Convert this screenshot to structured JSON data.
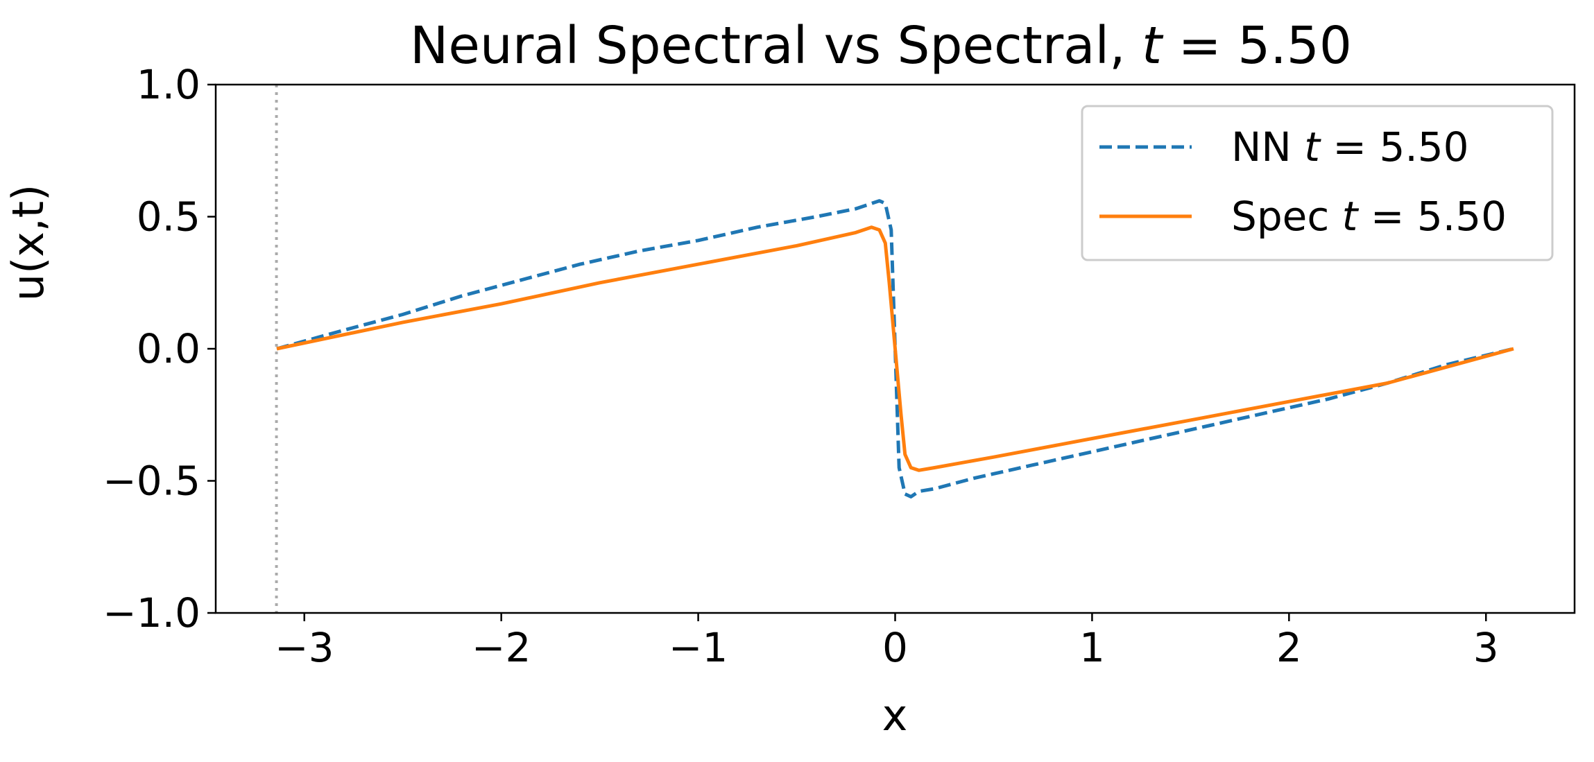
{
  "chart_data": {
    "type": "line",
    "title": "Neural Spectral vs Spectral, t = 5.50",
    "title_parts": {
      "prefix": "Neural Spectral vs Spectral, ",
      "var": "t",
      "eq": " = ",
      "val": "5.50"
    },
    "xlabel": "x",
    "ylabel": "u(x,t)",
    "xlim": [
      -3.45,
      3.45
    ],
    "ylim": [
      -1.0,
      1.0
    ],
    "xticks": [
      -3,
      -2,
      -1,
      0,
      1,
      2,
      3
    ],
    "xtick_labels": [
      "−3",
      "−2",
      "−1",
      "0",
      "1",
      "2",
      "3"
    ],
    "yticks": [
      -1.0,
      -0.5,
      0.0,
      0.5,
      1.0
    ],
    "ytick_labels": [
      "−1.0",
      "−0.5",
      "0.0",
      "0.5",
      "1.0"
    ],
    "grid": false,
    "legend_position": "top-right",
    "reference_line": {
      "x": -3.14159,
      "style": "dotted",
      "color": "#aaaaaa"
    },
    "series": [
      {
        "name": "NN t = 5.50",
        "name_parts": {
          "prefix": "NN ",
          "var": "t",
          "eq": " = ",
          "val": "5.50"
        },
        "color": "#1f77b4",
        "style": "dashed",
        "x": [
          -3.14,
          -2.8,
          -2.5,
          -2.2,
          -1.9,
          -1.6,
          -1.3,
          -1.0,
          -0.7,
          -0.4,
          -0.2,
          -0.08,
          -0.05,
          -0.02,
          0.0,
          0.02,
          0.05,
          0.08,
          0.12,
          0.2,
          0.4,
          0.7,
          1.0,
          1.3,
          1.6,
          1.9,
          2.2,
          2.5,
          2.8,
          3.14
        ],
        "y": [
          0.0,
          0.07,
          0.13,
          0.2,
          0.26,
          0.32,
          0.37,
          0.41,
          0.46,
          0.5,
          0.53,
          0.56,
          0.55,
          0.45,
          0.0,
          -0.45,
          -0.55,
          -0.56,
          -0.54,
          -0.53,
          -0.49,
          -0.44,
          -0.39,
          -0.34,
          -0.29,
          -0.24,
          -0.19,
          -0.13,
          -0.06,
          0.0
        ]
      },
      {
        "name": "Spec t = 5.50",
        "name_parts": {
          "prefix": "Spec ",
          "var": "t",
          "eq": " = ",
          "val": "5.50"
        },
        "color": "#ff7f0e",
        "style": "solid",
        "x": [
          -3.14,
          -2.5,
          -2.0,
          -1.5,
          -1.0,
          -0.5,
          -0.2,
          -0.12,
          -0.08,
          -0.05,
          -0.03,
          0.0,
          0.03,
          0.05,
          0.08,
          0.12,
          0.2,
          0.5,
          1.0,
          1.5,
          2.0,
          2.5,
          3.14
        ],
        "y": [
          0.0,
          0.1,
          0.17,
          0.25,
          0.32,
          0.39,
          0.44,
          0.46,
          0.45,
          0.4,
          0.25,
          0.0,
          -0.25,
          -0.4,
          -0.45,
          -0.46,
          -0.45,
          -0.41,
          -0.34,
          -0.27,
          -0.2,
          -0.13,
          0.0
        ]
      }
    ]
  }
}
